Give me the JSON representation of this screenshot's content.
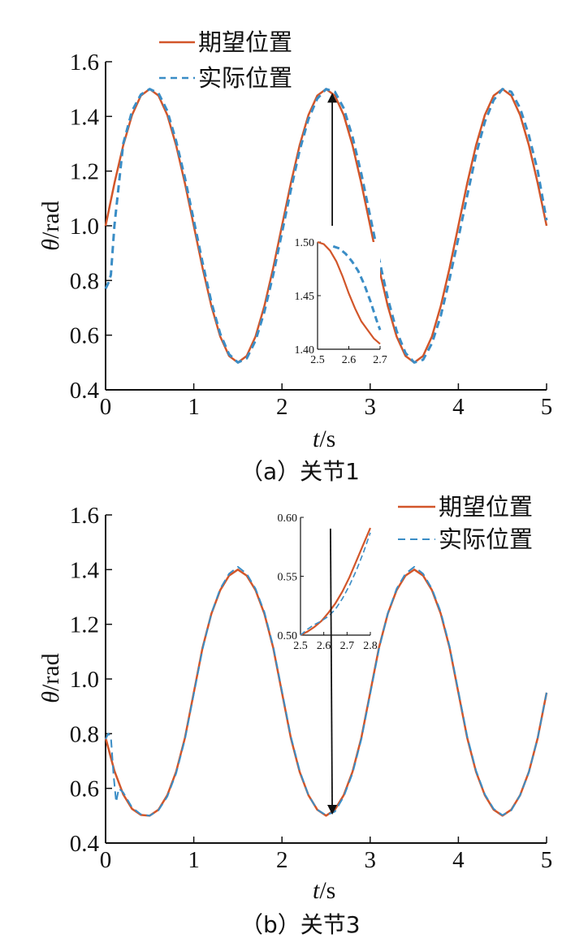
{
  "colors": {
    "desired": "#d2562a",
    "actual": "#3a8dc6",
    "axis": "#111111",
    "arrow": "#111111"
  },
  "legend": {
    "desired": "期望位置",
    "actual": "实际位置"
  },
  "chart_data": [
    {
      "type": "line",
      "panel": "a",
      "caption": "（a）关节1",
      "xlabel_italic": "t",
      "xlabel_unit": "/s",
      "ylabel_italic": "θ",
      "ylabel_unit": "/rad",
      "xlim": [
        0,
        5
      ],
      "ylim": [
        0.4,
        1.6
      ],
      "x_ticks": [
        0,
        1,
        2,
        3,
        4,
        5
      ],
      "y_ticks": [
        0.4,
        0.6,
        0.8,
        1.0,
        1.2,
        1.4,
        1.6
      ],
      "x_tick_labels": [
        "0",
        "1",
        "2",
        "3",
        "4",
        "5"
      ],
      "y_tick_labels": [
        "0.4",
        "0.6",
        "0.8",
        "1.0",
        "1.2",
        "1.4",
        "1.6"
      ],
      "legend_position": "top-center",
      "series": [
        {
          "name": "期望位置",
          "style": "solid",
          "x": [
            0,
            0.1,
            0.2,
            0.3,
            0.4,
            0.5,
            0.6,
            0.7,
            0.8,
            0.9,
            1.0,
            1.1,
            1.2,
            1.3,
            1.4,
            1.5,
            1.6,
            1.7,
            1.8,
            1.9,
            2.0,
            2.1,
            2.2,
            2.3,
            2.4,
            2.5,
            2.6,
            2.7,
            2.8,
            2.9,
            3.0,
            3.1,
            3.2,
            3.3,
            3.4,
            3.5,
            3.6,
            3.7,
            3.8,
            3.9,
            4.0,
            4.1,
            4.2,
            4.3,
            4.4,
            4.5,
            4.6,
            4.7,
            4.8,
            4.9,
            5.0
          ],
          "y": [
            1.0,
            1.155,
            1.294,
            1.405,
            1.476,
            1.5,
            1.476,
            1.405,
            1.294,
            1.155,
            1.0,
            0.845,
            0.706,
            0.595,
            0.524,
            0.5,
            0.524,
            0.595,
            0.706,
            0.845,
            1.0,
            1.155,
            1.294,
            1.405,
            1.476,
            1.5,
            1.476,
            1.405,
            1.294,
            1.155,
            1.0,
            0.845,
            0.706,
            0.595,
            0.524,
            0.5,
            0.524,
            0.595,
            0.706,
            0.845,
            1.0,
            1.155,
            1.294,
            1.405,
            1.476,
            1.5,
            1.476,
            1.405,
            1.294,
            1.155,
            1.0
          ]
        },
        {
          "name": "实际位置",
          "style": "dashed",
          "x": [
            0,
            0.03,
            0.06,
            0.1,
            0.15,
            0.2,
            0.3,
            0.4,
            0.5,
            0.6,
            0.7,
            0.8,
            0.9,
            1.0,
            1.1,
            1.2,
            1.3,
            1.4,
            1.5,
            1.6,
            1.7,
            1.8,
            1.9,
            2.0,
            2.1,
            2.2,
            2.3,
            2.4,
            2.5,
            2.6,
            2.7,
            2.8,
            2.9,
            3.0,
            3.1,
            3.2,
            3.3,
            3.4,
            3.5,
            3.6,
            3.7,
            3.8,
            3.9,
            4.0,
            4.1,
            4.2,
            4.3,
            4.4,
            4.5,
            4.6,
            4.7,
            4.8,
            4.9,
            5.0
          ],
          "y": [
            0.77,
            0.79,
            0.82,
            1.0,
            1.15,
            1.3,
            1.42,
            1.48,
            1.5,
            1.485,
            1.42,
            1.31,
            1.175,
            1.02,
            0.865,
            0.72,
            0.605,
            0.53,
            0.5,
            0.515,
            0.58,
            0.685,
            0.82,
            0.975,
            1.13,
            1.275,
            1.39,
            1.465,
            1.5,
            1.49,
            1.43,
            1.325,
            1.19,
            1.035,
            0.88,
            0.735,
            0.615,
            0.535,
            0.5,
            0.51,
            0.57,
            0.67,
            0.805,
            0.955,
            1.11,
            1.26,
            1.38,
            1.46,
            1.5,
            1.49,
            1.43,
            1.33,
            1.2,
            1.02
          ]
        }
      ],
      "inset": {
        "xlim": [
          2.5,
          2.7
        ],
        "ylim": [
          1.4,
          1.5
        ],
        "x_ticks": [
          2.5,
          2.6,
          2.7
        ],
        "y_ticks": [
          1.4,
          1.45,
          1.5
        ],
        "x_tick_labels": [
          "2.5",
          "2.6",
          "2.7"
        ],
        "y_tick_labels": [
          "1.40",
          "1.45",
          "1.50"
        ],
        "desired": {
          "x": [
            2.5,
            2.52,
            2.54,
            2.56,
            2.58,
            2.6,
            2.62,
            2.64,
            2.66,
            2.68,
            2.7
          ],
          "y": [
            1.5,
            1.498,
            1.492,
            1.482,
            1.468,
            1.452,
            1.438,
            1.426,
            1.418,
            1.41,
            1.405
          ]
        },
        "actual": {
          "x": [
            2.55,
            2.57,
            2.59,
            2.61,
            2.63,
            2.65,
            2.67,
            2.69,
            2.7
          ],
          "y": [
            1.496,
            1.494,
            1.489,
            1.482,
            1.473,
            1.46,
            1.444,
            1.426,
            1.418
          ]
        }
      },
      "arrow": {
        "from": [
          2.57,
          1.0
        ],
        "to": [
          2.57,
          1.48
        ]
      }
    },
    {
      "type": "line",
      "panel": "b",
      "caption": "（b）关节3",
      "xlabel_italic": "t",
      "xlabel_unit": "/s",
      "ylabel_italic": "θ",
      "ylabel_unit": "/rad",
      "xlim": [
        0,
        5
      ],
      "ylim": [
        0.4,
        1.6
      ],
      "x_ticks": [
        0,
        1,
        2,
        3,
        4,
        5
      ],
      "y_ticks": [
        0.4,
        0.6,
        0.8,
        1.0,
        1.2,
        1.4,
        1.6
      ],
      "x_tick_labels": [
        "0",
        "1",
        "2",
        "3",
        "4",
        "5"
      ],
      "y_tick_labels": [
        "0.4",
        "0.6",
        "0.8",
        "1.0",
        "1.2",
        "1.4",
        "1.6"
      ],
      "legend_position": "top-right",
      "series": [
        {
          "name": "期望位置",
          "style": "solid",
          "x": [
            0,
            0.1,
            0.2,
            0.3,
            0.4,
            0.5,
            0.6,
            0.7,
            0.8,
            0.9,
            1.0,
            1.1,
            1.2,
            1.3,
            1.4,
            1.5,
            1.6,
            1.7,
            1.8,
            1.9,
            2.0,
            2.1,
            2.2,
            2.3,
            2.4,
            2.5,
            2.6,
            2.7,
            2.8,
            2.9,
            3.0,
            3.1,
            3.2,
            3.3,
            3.4,
            3.5,
            3.6,
            3.7,
            3.8,
            3.9,
            4.0,
            4.1,
            4.2,
            4.3,
            4.4,
            4.5,
            4.6,
            4.7,
            4.8,
            4.9,
            5.0
          ],
          "y": [
            0.785,
            0.664,
            0.578,
            0.525,
            0.503,
            0.5,
            0.522,
            0.575,
            0.661,
            0.785,
            0.95,
            1.115,
            1.239,
            1.325,
            1.378,
            1.4,
            1.378,
            1.325,
            1.239,
            1.115,
            0.95,
            0.785,
            0.661,
            0.575,
            0.522,
            0.5,
            0.522,
            0.575,
            0.661,
            0.785,
            0.95,
            1.115,
            1.239,
            1.325,
            1.378,
            1.4,
            1.378,
            1.325,
            1.239,
            1.115,
            0.95,
            0.785,
            0.661,
            0.575,
            0.522,
            0.5,
            0.522,
            0.575,
            0.661,
            0.785,
            0.95
          ]
        },
        {
          "name": "实际位置",
          "style": "dashed",
          "x": [
            0,
            0.03,
            0.06,
            0.09,
            0.12,
            0.15,
            0.2,
            0.3,
            0.4,
            0.5,
            0.6,
            0.7,
            0.8,
            0.9,
            1.0,
            1.1,
            1.2,
            1.3,
            1.4,
            1.5,
            1.6,
            1.7,
            1.8,
            1.9,
            2.0,
            2.1,
            2.2,
            2.3,
            2.4,
            2.5,
            2.6,
            2.7,
            2.8,
            2.9,
            3.0,
            3.1,
            3.2,
            3.3,
            3.4,
            3.5,
            3.6,
            3.7,
            3.8,
            3.9,
            4.0,
            4.1,
            4.2,
            4.3,
            4.4,
            4.5,
            4.6,
            4.7,
            4.8,
            4.9,
            5.0
          ],
          "y": [
            0.78,
            0.8,
            0.79,
            0.65,
            0.55,
            0.6,
            0.585,
            0.53,
            0.505,
            0.5,
            0.52,
            0.57,
            0.655,
            0.78,
            0.945,
            1.11,
            1.24,
            1.33,
            1.385,
            1.41,
            1.385,
            1.33,
            1.245,
            1.12,
            0.955,
            0.79,
            0.665,
            0.575,
            0.522,
            0.502,
            0.515,
            0.57,
            0.655,
            0.78,
            0.945,
            1.11,
            1.24,
            1.33,
            1.385,
            1.41,
            1.385,
            1.33,
            1.245,
            1.12,
            0.955,
            0.79,
            0.665,
            0.578,
            0.525,
            0.502,
            0.52,
            0.575,
            0.66,
            0.785,
            0.95
          ]
        }
      ],
      "inset": {
        "xlim": [
          2.5,
          2.8
        ],
        "ylim": [
          0.5,
          0.6
        ],
        "x_ticks": [
          2.5,
          2.6,
          2.7,
          2.8
        ],
        "y_ticks": [
          0.5,
          0.55,
          0.6
        ],
        "x_tick_labels": [
          "2.5",
          "2.6",
          "2.7",
          "2.8"
        ],
        "y_tick_labels": [
          "0.50",
          "0.55",
          "0.60"
        ],
        "desired": {
          "x": [
            2.5,
            2.53,
            2.56,
            2.59,
            2.62,
            2.65,
            2.68,
            2.71,
            2.74,
            2.77,
            2.8
          ],
          "y": [
            0.5,
            0.503,
            0.507,
            0.512,
            0.519,
            0.527,
            0.537,
            0.549,
            0.563,
            0.577,
            0.591
          ]
        },
        "actual": {
          "x": [
            2.5,
            2.53,
            2.56,
            2.59,
            2.62,
            2.65,
            2.68,
            2.71,
            2.74,
            2.77,
            2.8
          ],
          "y": [
            0.5,
            0.505,
            0.509,
            0.512,
            0.516,
            0.522,
            0.531,
            0.542,
            0.555,
            0.57,
            0.587
          ]
        }
      },
      "arrow": {
        "from": [
          2.55,
          1.55
        ],
        "to": [
          2.57,
          0.51
        ]
      }
    }
  ]
}
